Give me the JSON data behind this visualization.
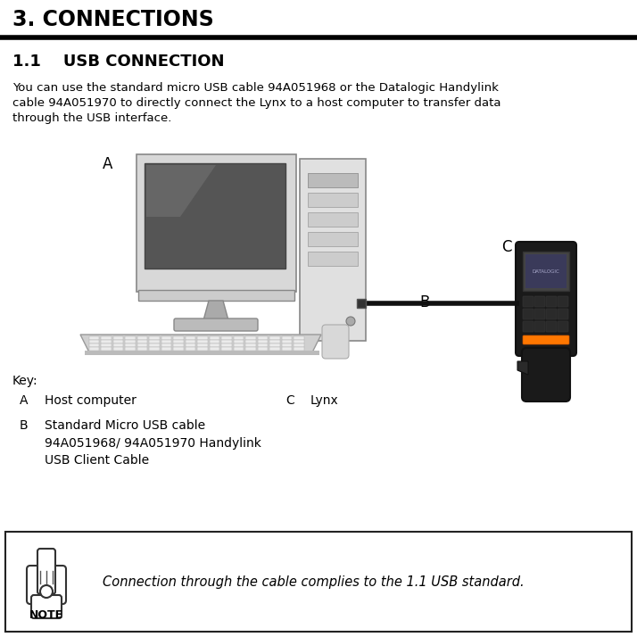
{
  "title": "3. CONNECTIONS",
  "subtitle": "1.1    USB CONNECTION",
  "body_text_lines": [
    "You can use the standard micro USB cable 94A051968 or the Datalogic Handylink",
    "cable 94A051970 to directly connect the Lynx to a host computer to transfer data",
    "through the USB interface."
  ],
  "key_label": "Key:",
  "note_text": "Connection through the cable complies to the 1.1 USB standard.",
  "note_label": "NOTE",
  "bg_color": "#ffffff",
  "text_color": "#000000",
  "label_A": "A",
  "label_B": "B",
  "label_C": "C"
}
